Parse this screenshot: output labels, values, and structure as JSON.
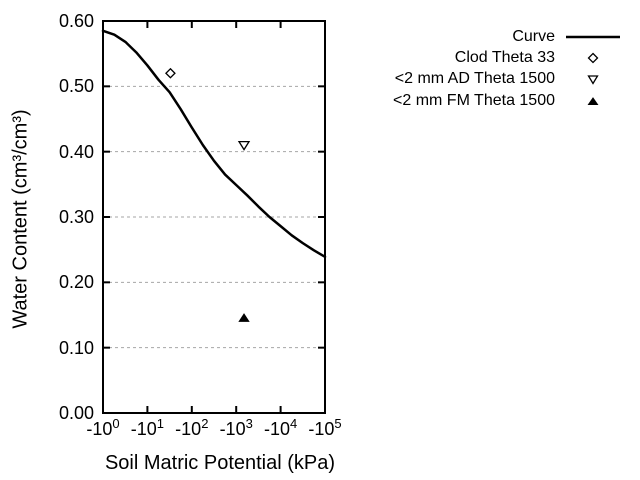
{
  "figure": {
    "background": "#ffffff",
    "text_color": "#000000",
    "grid_color": "#a6a6a6",
    "line_color": "#000000"
  },
  "chart_data": {
    "type": "line+scatter",
    "title": "",
    "xlabel": "Soil Matric Potential (kPa)",
    "ylabel": "Water Content (cm³/cm³)",
    "x_scale": "log10 of negative matric potential, -10^0 to -10^5 kPa",
    "xlim": [
      -1,
      -100000
    ],
    "ylim": [
      0,
      0.6
    ],
    "grid": "horizontal dashed gridlines at 0.10 through 0.50",
    "legend_position": "outside top-right",
    "x_ticks": [
      {
        "base": "-10",
        "exp": "0"
      },
      {
        "base": "-10",
        "exp": "1"
      },
      {
        "base": "-10",
        "exp": "2"
      },
      {
        "base": "-10",
        "exp": "3"
      },
      {
        "base": "-10",
        "exp": "4"
      },
      {
        "base": "-10",
        "exp": "5"
      }
    ],
    "y_ticks": [
      "0.00",
      "0.10",
      "0.20",
      "0.30",
      "0.40",
      "0.50",
      "0.60"
    ],
    "grid_y": [
      0.1,
      0.2,
      0.3,
      0.4,
      0.5
    ],
    "series": [
      {
        "name": "Curve",
        "type": "line",
        "marker": "none",
        "points": [
          [
            -1,
            0.585
          ],
          [
            -1.8,
            0.579
          ],
          [
            -3.2,
            0.568
          ],
          [
            -5.6,
            0.552
          ],
          [
            -10,
            0.532
          ],
          [
            -17.8,
            0.51
          ],
          [
            -31.6,
            0.491
          ],
          [
            -56.2,
            0.465
          ],
          [
            -100,
            0.437
          ],
          [
            -178,
            0.41
          ],
          [
            -316,
            0.386
          ],
          [
            -562,
            0.365
          ],
          [
            -1000,
            0.349
          ],
          [
            -1778,
            0.333
          ],
          [
            -3162,
            0.316
          ],
          [
            -5623,
            0.3
          ],
          [
            -10000,
            0.286
          ],
          [
            -17783,
            0.272
          ],
          [
            -31623,
            0.26
          ],
          [
            -56234,
            0.249
          ],
          [
            -100000,
            0.239
          ]
        ]
      },
      {
        "name": "Clod Theta 33",
        "type": "scatter",
        "marker": "open-diamond",
        "points": [
          [
            -33,
            0.52
          ]
        ]
      },
      {
        "name": "<2 mm AD Theta 1500",
        "type": "scatter",
        "marker": "open-triangle-down",
        "points": [
          [
            -1500,
            0.41
          ]
        ]
      },
      {
        "name": "<2 mm FM Theta 1500",
        "type": "scatter",
        "marker": "filled-triangle-up",
        "points": [
          [
            -1500,
            0.145
          ]
        ]
      }
    ]
  }
}
